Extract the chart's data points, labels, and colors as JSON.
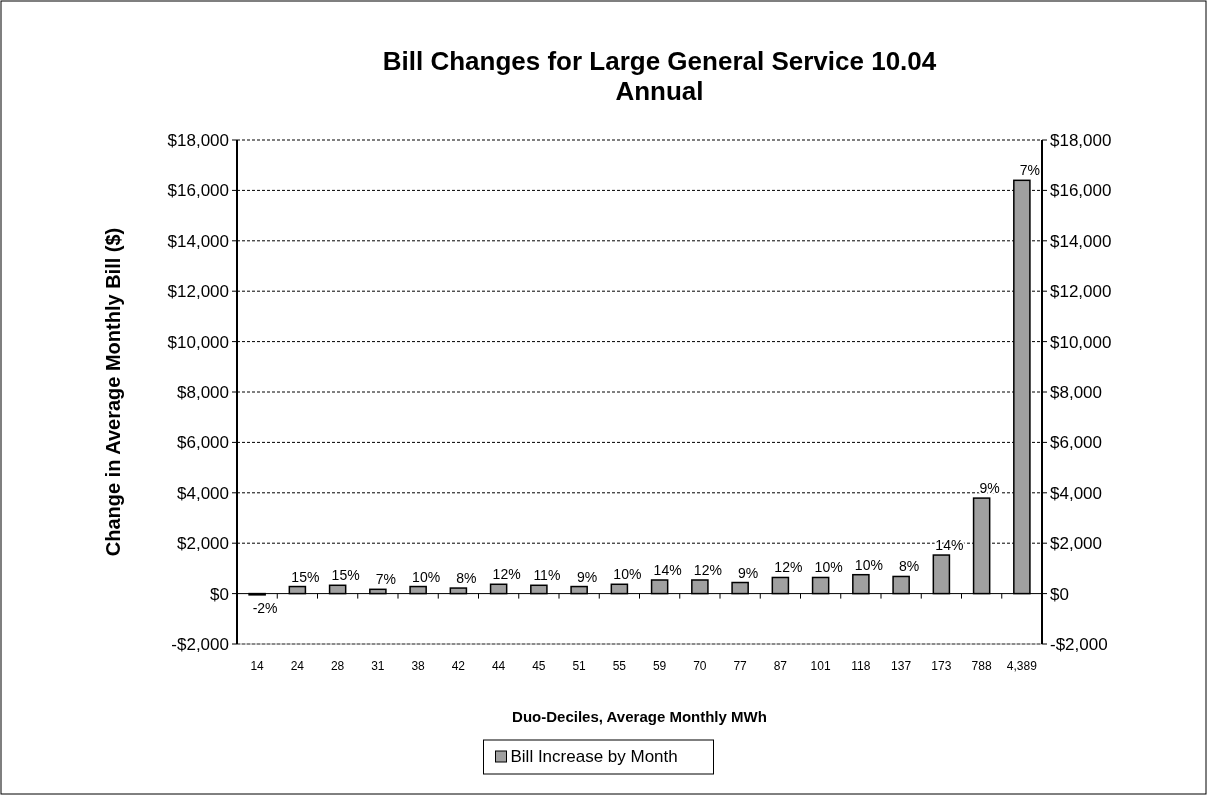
{
  "chart_data": {
    "type": "bar",
    "title": "Bill Changes for Large General Service 10.04\nAnnual",
    "xlabel": "Duo-Deciles, Average Monthly MWh",
    "ylabel": "Change in Average Monthly Bill  ($)",
    "categories": [
      "14",
      "24",
      "28",
      "31",
      "38",
      "42",
      "44",
      "45",
      "51",
      "55",
      "59",
      "70",
      "77",
      "87",
      "101",
      "118",
      "137",
      "173",
      "788",
      "4,389"
    ],
    "series": [
      {
        "name": "Bill Increase by Month",
        "color": "#a0a0a0",
        "values": [
          -50,
          280,
          330,
          170,
          280,
          220,
          370,
          330,
          280,
          370,
          540,
          540,
          440,
          640,
          640,
          750,
          680,
          1530,
          3790,
          16400
        ]
      }
    ],
    "annotations": [
      {
        "text": "-2%",
        "x": "14",
        "y": -50
      },
      {
        "text": "15%",
        "x": "24",
        "y": 280
      },
      {
        "text": "15%",
        "x": "28",
        "y": 330
      },
      {
        "text": "7%",
        "x": "31",
        "y": 170
      },
      {
        "text": "10%",
        "x": "38",
        "y": 280
      },
      {
        "text": "8%",
        "x": "42",
        "y": 220
      },
      {
        "text": "12%",
        "x": "44",
        "y": 370
      },
      {
        "text": "11%",
        "x": "45",
        "y": 330
      },
      {
        "text": "9%",
        "x": "51",
        "y": 280
      },
      {
        "text": "10%",
        "x": "55",
        "y": 370
      },
      {
        "text": "14%",
        "x": "59",
        "y": 540
      },
      {
        "text": "12%",
        "x": "70",
        "y": 540
      },
      {
        "text": "9%",
        "x": "77",
        "y": 440
      },
      {
        "text": "12%",
        "x": "87",
        "y": 640
      },
      {
        "text": "10%",
        "x": "101",
        "y": 640
      },
      {
        "text": "10%",
        "x": "118",
        "y": 750
      },
      {
        "text": "8%",
        "x": "137",
        "y": 680
      },
      {
        "text": "14%",
        "x": "173",
        "y": 1530
      },
      {
        "text": "9%",
        "x": "788",
        "y": 3790
      },
      {
        "text": "7%",
        "x": "4,389",
        "y": 16400
      }
    ],
    "ylim": [
      -2000,
      18000
    ],
    "yticks": [
      {
        "value": -2000,
        "label": "-$2,000"
      },
      {
        "value": 0,
        "label": "$0"
      },
      {
        "value": 2000,
        "label": "$2,000"
      },
      {
        "value": 4000,
        "label": "$4,000"
      },
      {
        "value": 6000,
        "label": "$6,000"
      },
      {
        "value": 8000,
        "label": "$8,000"
      },
      {
        "value": 10000,
        "label": "$10,000"
      },
      {
        "value": 12000,
        "label": "$12,000"
      },
      {
        "value": 14000,
        "label": "$14,000"
      },
      {
        "value": 16000,
        "label": "$16,000"
      },
      {
        "value": 18000,
        "label": "$18,000"
      }
    ],
    "y2lim": [
      -2000,
      18000
    ],
    "y2ticks": [
      {
        "value": -2000,
        "label": "-$2,000"
      },
      {
        "value": 0,
        "label": "$0"
      },
      {
        "value": 2000,
        "label": "$2,000"
      },
      {
        "value": 4000,
        "label": "$4,000"
      },
      {
        "value": 6000,
        "label": "$6,000"
      },
      {
        "value": 8000,
        "label": "$8,000"
      },
      {
        "value": 10000,
        "label": "$10,000"
      },
      {
        "value": 12000,
        "label": "$12,000"
      },
      {
        "value": 14000,
        "label": "$14,000"
      },
      {
        "value": 16000,
        "label": "$16,000"
      },
      {
        "value": 18000,
        "label": "$18,000"
      }
    ],
    "grid": "y",
    "legend": "bottom"
  }
}
